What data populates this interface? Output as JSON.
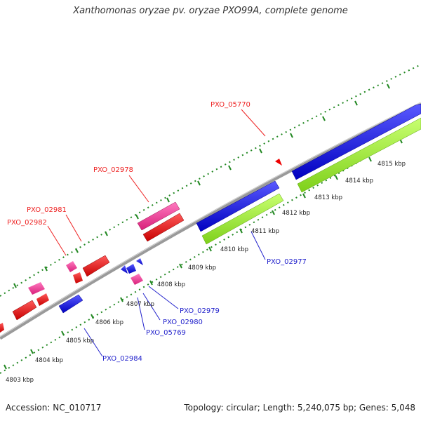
{
  "title": "Xanthomonas oryzae pv. oryzae PXO99A, complete genome",
  "footer": {
    "accession": "Accession: NC_010717",
    "summary": "Topology: circular; Length: 5,240,075 bp; Genes: 5,048"
  },
  "colors": {
    "backbone": "#8a8a8a",
    "forward_cds": "#0000ee",
    "reverse_cds": "#8be61e",
    "red_genes": "#ee0000",
    "pink_genes": "#ee3399",
    "tick": "#228822",
    "forward_label": "#2222cc",
    "reverse_label": "#ee2222"
  },
  "scale_labels": [
    "4803 kbp",
    "4804 kbp",
    "4805 kbp",
    "4806 kbp",
    "4807 kbp",
    "4808 kbp",
    "4809 kbp",
    "4810 kbp",
    "4811 kbp",
    "4812 kbp",
    "4813 kbp",
    "4814 kbp",
    "4815 kbp"
  ],
  "gene_labels_top": [
    "PXO_05770",
    "PXO_02978",
    "PXO_02981",
    "PXO_02982"
  ],
  "gene_labels_bottom": [
    "PXO_02977",
    "PXO_02979",
    "PXO_02980",
    "PXO_05769",
    "PXO_02984"
  ]
}
